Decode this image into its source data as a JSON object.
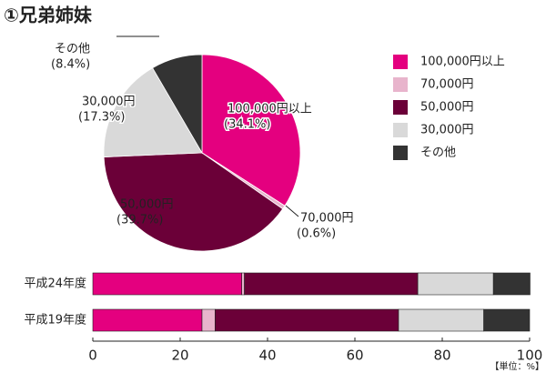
{
  "chart_data": [
    {
      "type": "pie",
      "title": "①兄弟姉妹",
      "categories": [
        "100,000円以上",
        "70,000円",
        "50,000円",
        "30,000円",
        "その他"
      ],
      "values": [
        34.1,
        0.6,
        39.7,
        17.3,
        8.4
      ],
      "value_labels": [
        "(34.1%)",
        "(0.6%)",
        "(39.7%)",
        "(17.3%)",
        "(8.4%)"
      ],
      "colors": [
        "#e4007f",
        "#e8b4cc",
        "#6b0038",
        "#d9d9d9",
        "#333333"
      ]
    },
    {
      "type": "stacked-bar-horizontal",
      "categories": [
        "平成24年度",
        "平成19年度"
      ],
      "series": [
        {
          "name": "100,000円以上",
          "color": "#e4007f",
          "values": [
            34.1,
            25
          ]
        },
        {
          "name": "70,000円",
          "color": "#e8b4cc",
          "values": [
            0.6,
            3
          ]
        },
        {
          "name": "50,000円",
          "color": "#6b0038",
          "values": [
            39.7,
            42
          ]
        },
        {
          "name": "30,000円",
          "color": "#d9d9d9",
          "values": [
            17.3,
            19.5
          ]
        },
        {
          "name": "その他",
          "color": "#333333",
          "values": [
            8.4,
            10.5
          ]
        }
      ],
      "xlim": [
        0,
        100
      ],
      "xticks": [
        0,
        20,
        40,
        60,
        80,
        100
      ],
      "unit_label": "【単位：%】"
    }
  ]
}
